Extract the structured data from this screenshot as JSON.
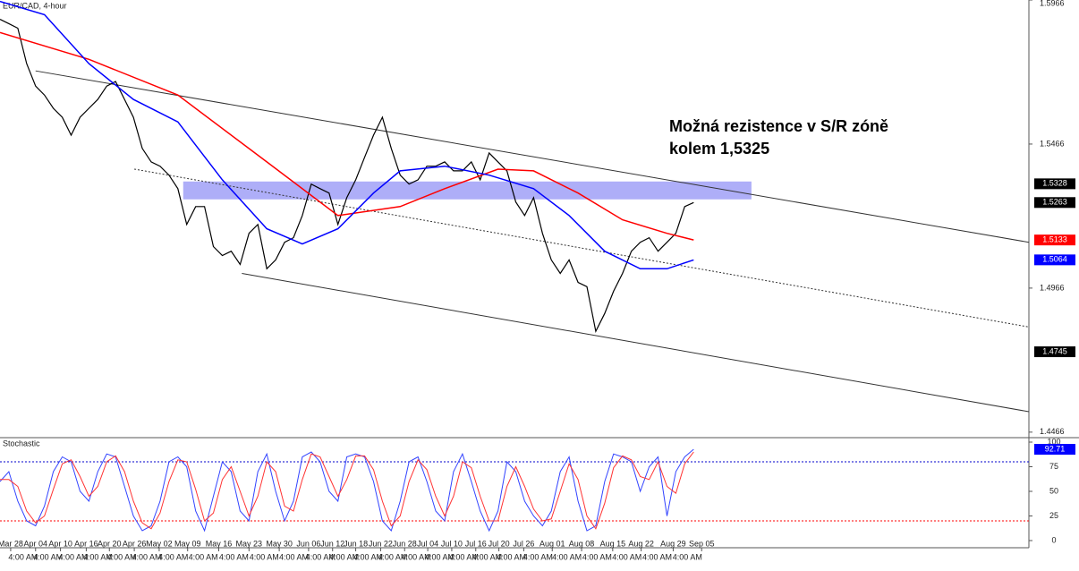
{
  "chart_data": {
    "type": "line",
    "title": "EUR/CAD, 4-hour",
    "annotation": [
      "Možná rezistence v S/R zóně",
      "kolem 1,5325"
    ],
    "xlim": [
      0,
      115.7
    ],
    "xticks": [
      {
        "value": 1.2,
        "label": "Mar 28"
      },
      {
        "value": 4.0,
        "label": "Apr 04"
      },
      {
        "value": 6.8,
        "label": "Apr 10"
      },
      {
        "value": 9.7,
        "label": "Apr 16"
      },
      {
        "value": 12.3,
        "label": "Apr 20"
      },
      {
        "value": 15.1,
        "label": "Apr 26"
      },
      {
        "value": 17.9,
        "label": "May 02"
      },
      {
        "value": 21.1,
        "label": "May 09"
      },
      {
        "value": 24.6,
        "label": "May 16"
      },
      {
        "value": 28.0,
        "label": "May 23"
      },
      {
        "value": 31.4,
        "label": "May 30"
      },
      {
        "value": 34.7,
        "label": "Jun 06"
      },
      {
        "value": 37.4,
        "label": "Jun 12"
      },
      {
        "value": 40.0,
        "label": "Jun 18"
      },
      {
        "value": 42.8,
        "label": "Jun 22"
      },
      {
        "value": 45.5,
        "label": "Jun 28"
      },
      {
        "value": 48.1,
        "label": "Jul 04"
      },
      {
        "value": 50.8,
        "label": "Jul 10"
      },
      {
        "value": 53.5,
        "label": "Jul 16"
      },
      {
        "value": 56.1,
        "label": "Jul 20"
      },
      {
        "value": 58.9,
        "label": "Jul 26"
      },
      {
        "value": 62.1,
        "label": "Aug 01"
      },
      {
        "value": 65.4,
        "label": "Aug 08"
      },
      {
        "value": 68.9,
        "label": "Aug 15"
      },
      {
        "value": 72.1,
        "label": "Aug 22"
      },
      {
        "value": 75.7,
        "label": "Aug 29"
      },
      {
        "value": 78.9,
        "label": "Sep 05"
      }
    ],
    "time_label": "4:00 AM",
    "ylim": [
      1.445,
      1.5966
    ],
    "yticks": [
      1.5966,
      1.5466,
      1.4966,
      1.4466
    ],
    "series": [
      {
        "color": "#000000",
        "values": [
          1.5899,
          1.5884,
          1.5868,
          1.5745,
          1.5667,
          1.5636,
          1.559,
          1.5559,
          1.5497,
          1.5559,
          1.559,
          1.5621,
          1.5667,
          1.5683,
          1.5621,
          1.5559,
          1.5451,
          1.5404,
          1.5389,
          1.5358,
          1.5311,
          1.5187,
          1.5249,
          1.5249,
          1.511,
          1.5079,
          1.5094,
          1.5048,
          1.5156,
          1.5187,
          1.5033,
          1.5064,
          1.5125,
          1.5141,
          1.5218,
          1.5327,
          1.5311,
          1.5296,
          1.5187,
          1.528,
          1.5342,
          1.542,
          1.5497,
          1.5559,
          1.5451,
          1.5358,
          1.5327,
          1.5342,
          1.5389,
          1.5389,
          1.5404,
          1.5373,
          1.5373,
          1.5404,
          1.5342,
          1.5435,
          1.5404,
          1.5373,
          1.5265,
          1.5218,
          1.528,
          1.5156,
          1.5064,
          1.5017,
          1.5064,
          1.4986,
          1.4971,
          1.4816,
          1.4878,
          1.4955,
          1.5017,
          1.5094,
          1.5125,
          1.5141,
          1.5094,
          1.5125,
          1.5156,
          1.5249,
          1.5263
        ]
      },
      {
        "color": "#ff0000",
        "x": [
          0,
          10,
          20,
          30,
          38,
          45,
          50,
          56,
          60,
          65,
          70,
          75,
          78
        ],
        "values": [
          1.5853,
          1.576,
          1.5636,
          1.5404,
          1.5218,
          1.5249,
          1.5311,
          1.5379,
          1.5373,
          1.5296,
          1.5203,
          1.5156,
          1.5133
        ]
      },
      {
        "color": "#0000ff",
        "x": [
          0,
          5,
          10,
          15,
          20,
          25,
          30,
          34,
          38,
          42,
          45,
          50,
          55,
          60,
          64,
          68,
          72,
          75,
          78
        ],
        "values": [
          1.5961,
          1.5915,
          1.5745,
          1.5621,
          1.5543,
          1.5342,
          1.5172,
          1.5119,
          1.5172,
          1.5296,
          1.5373,
          1.5389,
          1.5358,
          1.5311,
          1.5218,
          1.5094,
          1.5033,
          1.5033,
          1.5064
        ]
      }
    ],
    "trendlines": [
      {
        "style": "solid",
        "x": [
          4.0,
          115.7
        ],
        "values": [
          1.572,
          1.5125
        ]
      },
      {
        "style": "dotted",
        "x": [
          15.1,
          115.7
        ],
        "values": [
          1.5379,
          1.4831
        ]
      },
      {
        "style": "solid",
        "x": [
          27.2,
          115.7
        ],
        "values": [
          1.5017,
          1.4537
        ]
      }
    ],
    "zone": {
      "color": "#8c8cf5",
      "x": [
        20.6,
        84.5
      ],
      "values": [
        1.5336,
        1.5274
      ]
    },
    "price_labels": [
      {
        "value": 1.5328,
        "color": "#000000"
      },
      {
        "value": 1.5263,
        "color": "#000000"
      },
      {
        "value": 1.5133,
        "color": "#ff0000"
      },
      {
        "value": 1.5064,
        "color": "#0000ff"
      },
      {
        "value": 1.4745,
        "color": "#000000"
      }
    ],
    "stochastic": {
      "title": "Stochastic",
      "ylim": [
        0,
        100
      ],
      "yticks": [
        100,
        75,
        50,
        25,
        0
      ],
      "levels": [
        {
          "value": 80,
          "color": "#0000cc"
        },
        {
          "value": 20,
          "color": "#ff0000"
        }
      ],
      "last_label": 92.71,
      "series": [
        {
          "color": "#3344ff",
          "values": [
            60,
            70,
            40,
            20,
            15,
            35,
            70,
            85,
            80,
            50,
            40,
            70,
            88,
            85,
            55,
            25,
            10,
            15,
            40,
            80,
            85,
            75,
            30,
            10,
            45,
            80,
            70,
            30,
            20,
            70,
            88,
            50,
            20,
            40,
            85,
            90,
            80,
            50,
            40,
            85,
            88,
            85,
            60,
            20,
            10,
            40,
            80,
            85,
            60,
            30,
            20,
            70,
            88,
            60,
            30,
            10,
            30,
            80,
            70,
            40,
            25,
            15,
            30,
            70,
            85,
            40,
            10,
            15,
            60,
            88,
            85,
            80,
            50,
            75,
            85,
            25,
            70,
            85,
            92.71
          ]
        },
        {
          "color": "#ff3333",
          "values": [
            62,
            62,
            55,
            30,
            18,
            25,
            52,
            78,
            82,
            65,
            45,
            55,
            80,
            86,
            70,
            40,
            18,
            12,
            28,
            60,
            82,
            80,
            52,
            20,
            28,
            62,
            75,
            50,
            25,
            45,
            80,
            70,
            35,
            30,
            62,
            88,
            85,
            65,
            45,
            62,
            86,
            86,
            72,
            40,
            15,
            25,
            60,
            82,
            72,
            45,
            25,
            45,
            80,
            74,
            45,
            20,
            20,
            55,
            75,
            55,
            32,
            20,
            22,
            50,
            78,
            62,
            25,
            12,
            38,
            74,
            86,
            82,
            65,
            62,
            80,
            55,
            48,
            78,
            90
          ]
        }
      ]
    }
  }
}
